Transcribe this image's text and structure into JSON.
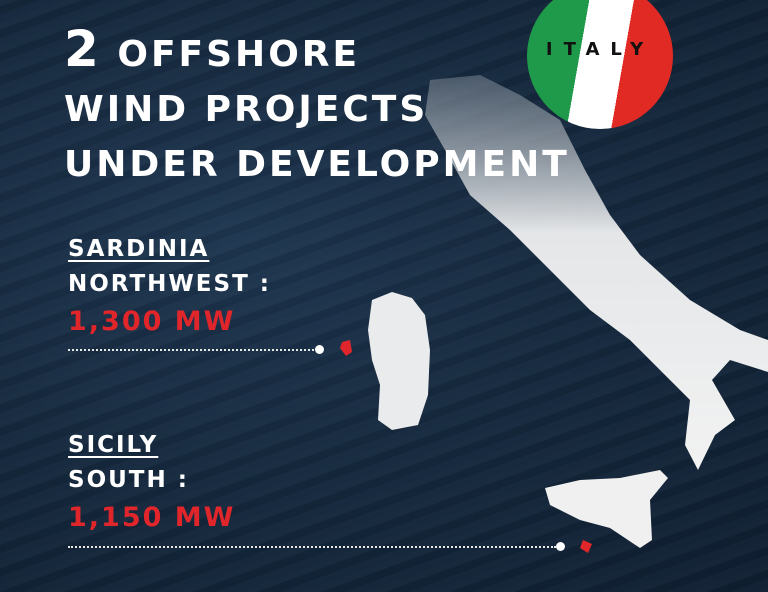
{
  "title": {
    "count": "2",
    "line1": "OFFSHORE",
    "line2": "WIND PROJECTS",
    "line3": "UNDER DEVELOPMENT"
  },
  "badge": {
    "label": "ITALY",
    "colors": [
      "#1f9a4a",
      "#ffffff",
      "#e12a23"
    ]
  },
  "projects": [
    {
      "region": "SARDINIA",
      "location": "NORTHWEST :",
      "capacity": "1,300 MW"
    },
    {
      "region": "SICILY",
      "location": "SOUTH :",
      "capacity": "1,150 MW"
    }
  ],
  "colors": {
    "accent": "#e0262b",
    "background": "#15283d"
  }
}
